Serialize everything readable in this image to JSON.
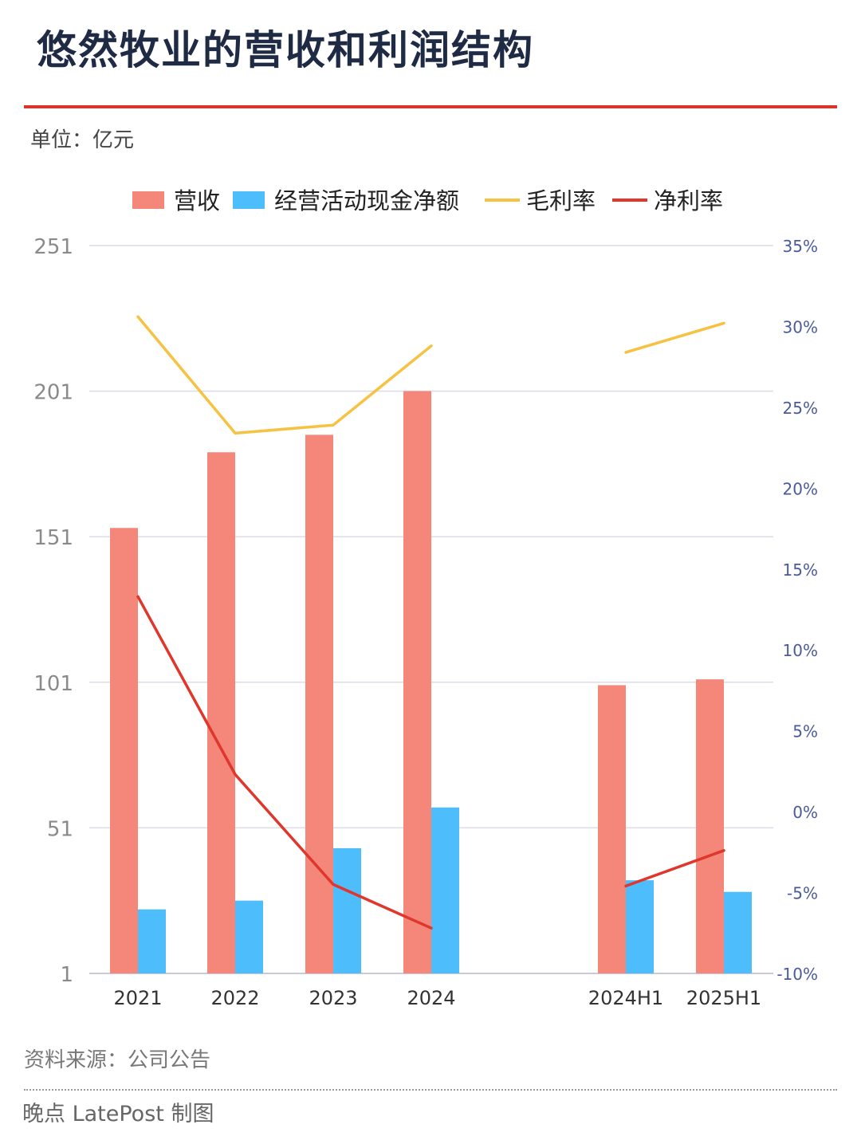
{
  "title": "悠然牧业的营收和利润结构",
  "unit_note": "单位：亿元",
  "source": "资料来源：公司公告",
  "credit": "晚点 LatePost 制图",
  "chart_data": {
    "type": "bar",
    "title": "悠然牧业的营收和利润结构",
    "categories": [
      "2021",
      "2022",
      "2023",
      "2024",
      "",
      "2024H1",
      "2025H1"
    ],
    "y_left": {
      "ticks": [
        "251",
        "201",
        "151",
        "101",
        "51",
        "1"
      ],
      "range": [
        1,
        251
      ],
      "unit": "亿元"
    },
    "y_right": {
      "ticks": [
        "35%",
        "30%",
        "25%",
        "20%",
        "15%",
        "10%",
        "5%",
        "0%",
        "-5%",
        "-10%"
      ],
      "range": [
        -10,
        35
      ],
      "unit": "%"
    },
    "grid": true,
    "legend_position": "top",
    "series": [
      {
        "name": "营收",
        "type": "bar",
        "axis": "left",
        "color": "#f4877a",
        "values": [
          154,
          180,
          186,
          201,
          null,
          100,
          102
        ]
      },
      {
        "name": "经营活动现金净额",
        "type": "bar",
        "axis": "left",
        "color": "#4ebdfc",
        "values": [
          23,
          26,
          44,
          58,
          null,
          33,
          29
        ]
      },
      {
        "name": "毛利率",
        "type": "line",
        "axis": "right",
        "color": "#f5c242",
        "values": [
          30.6,
          23.4,
          23.9,
          28.8,
          null,
          28.4,
          30.2
        ]
      },
      {
        "name": "净利率",
        "type": "line",
        "axis": "right",
        "color": "#e0362b",
        "values": [
          13.3,
          2.3,
          -4.5,
          -7.2,
          null,
          -4.6,
          -2.4
        ]
      }
    ]
  }
}
